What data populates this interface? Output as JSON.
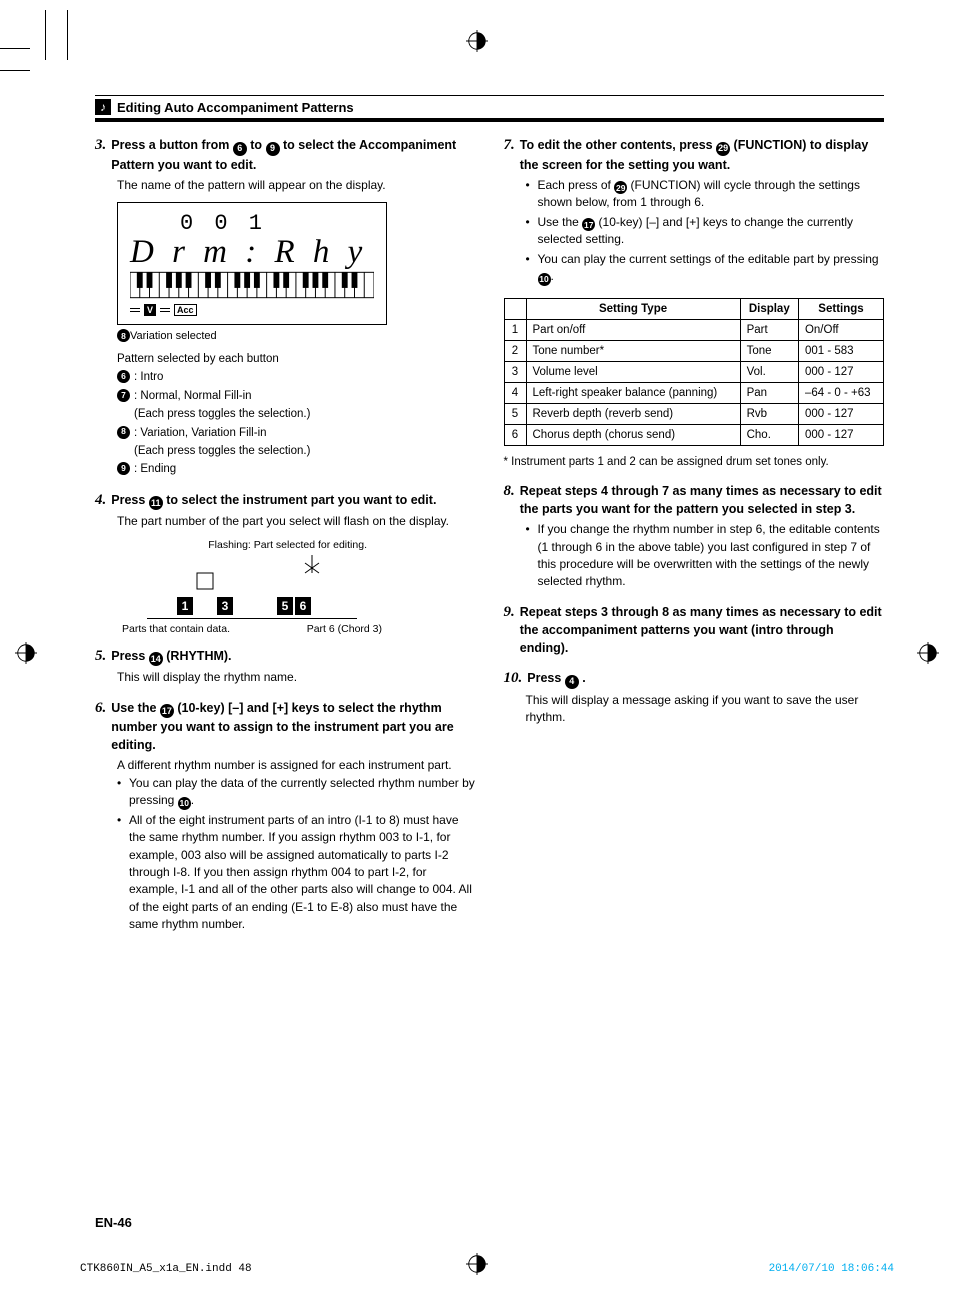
{
  "header": {
    "title": "Editing Auto Accompaniment Patterns",
    "icon": "♪"
  },
  "lcd": {
    "top": "0 0 1",
    "main": "D r m : R h y",
    "v": "V",
    "acc": "Acc"
  },
  "step3": {
    "num": "3.",
    "title_a": "Press a button from ",
    "btn_a": "6",
    "title_b": " to ",
    "btn_b": "9",
    "title_c": " to select the Accompaniment Pattern you want to edit.",
    "body": "The name of the pattern will appear on the display.",
    "caption_icon": "8",
    "caption_text": " Variation selected",
    "list_head": "Pattern selected by each button",
    "r1_icon": "6",
    "r1_text": " : Intro",
    "r2_icon": "7",
    "r2_text": " : Normal, Normal Fill-in",
    "r2_sub": "(Each press toggles the selection.)",
    "r3_icon": "8",
    "r3_text": " : Variation, Variation Fill-in",
    "r3_sub": "(Each press toggles the selection.)",
    "r4_icon": "9",
    "r4_text": " : Ending"
  },
  "step4": {
    "num": "4.",
    "title_a": "Press ",
    "btn": "11",
    "title_b": " to select the instrument part you want to edit.",
    "body": "The part number of the part you select will flash on the display.",
    "diag_top": "Flashing: Part selected for editing.",
    "diag_n1": "1",
    "diag_n3": "3",
    "diag_n5": "5",
    "diag_n6": "6",
    "diag_bl": "Parts that contain data.",
    "diag_br": "Part 6 (Chord 3)"
  },
  "step5": {
    "num": "5.",
    "title_a": "Press ",
    "btn": "14",
    "title_b": " (RHYTHM).",
    "body": "This will display the rhythm name."
  },
  "step6": {
    "num": "6.",
    "title_a": "Use the ",
    "btn": "17",
    "title_b": " (10-key) [–] and [+] keys to select the rhythm number you want to assign to the instrument part you are editing.",
    "body": "A different rhythm number is assigned for each instrument part.",
    "li1_a": "You can play the data of the currently selected rhythm number by pressing ",
    "li1_btn": "10",
    "li1_b": ".",
    "li2": "All of the eight instrument parts of an intro (I-1 to 8) must have the same rhythm number. If you assign rhythm 003 to I-1, for example, 003 also will be assigned automatically to parts I-2 through I-8. If you then assign rhythm 004 to part I-2, for example, I-1 and all of the other parts also will change to 004. All of the eight parts of an ending (E-1 to E-8) also must have the same rhythm number."
  },
  "step7": {
    "num": "7.",
    "title_a": "To edit the other contents, press ",
    "btn": "29",
    "title_b": " (FUNCTION) to display the screen for the setting you want.",
    "li1_a": "Each press of ",
    "li1_btn": "29",
    "li1_b": " (FUNCTION) will cycle through the settings shown below, from 1 through 6.",
    "li2_a": "Use the ",
    "li2_btn": "17",
    "li2_b": " (10-key) [–] and [+] keys to change the currently selected setting.",
    "li3_a": "You can play the current settings of the editable part by pressing ",
    "li3_btn": "10",
    "li3_b": "."
  },
  "table": {
    "h1": "Setting Type",
    "h2": "Display",
    "h3": "Settings",
    "rows": [
      {
        "n": "1",
        "type": "Part on/off",
        "disp": "Part",
        "set": "On/Off"
      },
      {
        "n": "2",
        "type": "Tone number*",
        "disp": "Tone",
        "set": "001 - 583"
      },
      {
        "n": "3",
        "type": "Volume level",
        "disp": "Vol.",
        "set": "000 - 127"
      },
      {
        "n": "4",
        "type": "Left-right speaker balance (panning)",
        "disp": "Pan",
        "set": "–64 - 0 - +63"
      },
      {
        "n": "5",
        "type": "Reverb depth (reverb send)",
        "disp": "Rvb",
        "set": "000 - 127"
      },
      {
        "n": "6",
        "type": "Chorus depth (chorus send)",
        "disp": "Cho.",
        "set": "000 - 127"
      }
    ],
    "footnote": "*  Instrument parts 1 and 2 can be assigned drum set tones only."
  },
  "step8": {
    "num": "8.",
    "title": "Repeat steps 4 through 7 as many times as necessary to edit the parts you want for the pattern you selected in step 3.",
    "li1": "If you change the rhythm number in step 6, the editable contents (1 through 6 in the above table) you last configured in step 7 of this procedure will be overwritten with the settings of the newly selected rhythm."
  },
  "step9": {
    "num": "9.",
    "title": "Repeat steps 3 through 8 as many times as necessary to edit the accompaniment patterns you want (intro through ending)."
  },
  "step10": {
    "num": "10.",
    "title_a": "Press ",
    "btn": "4",
    "title_b": " .",
    "body": "This will display a message asking if you want to save the user rhythm."
  },
  "page_num": "EN-46",
  "footer_left": "CTK860IN_A5_x1a_EN.indd   48",
  "footer_right": "2014/07/10   18:06:44"
}
